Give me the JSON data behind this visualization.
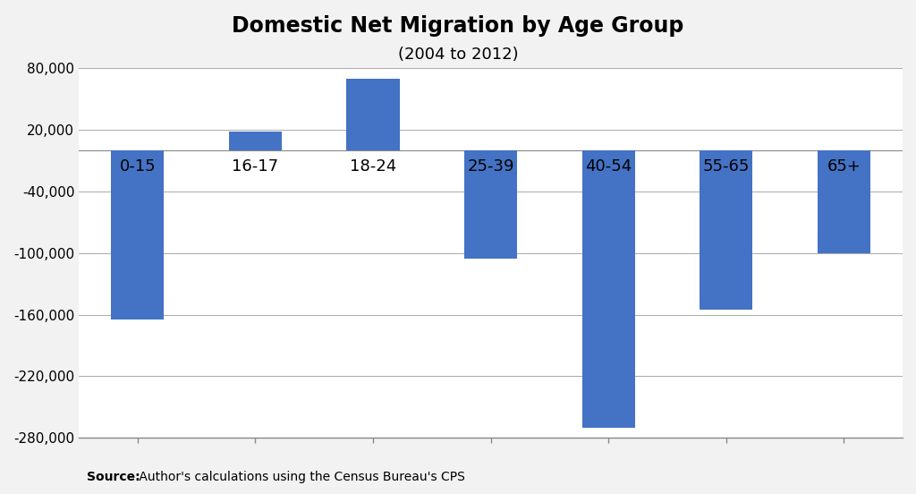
{
  "title_line1": "Domestic Net Migration by Age Group",
  "title_line2": "(2004 to 2012)",
  "categories": [
    "0-15",
    "16-17",
    "18-24",
    "25-39",
    "40-54",
    "55-65",
    "65+"
  ],
  "values": [
    -165000,
    18000,
    70000,
    -105000,
    -270000,
    -155000,
    -100000
  ],
  "bar_color": "#4472C4",
  "ylim": [
    -280000,
    80000
  ],
  "yticks": [
    -280000,
    -220000,
    -160000,
    -100000,
    -40000,
    20000,
    80000
  ],
  "source_text_bold": "Source:",
  "source_text_normal": " Author's calculations using the Census Bureau's CPS",
  "background_color": "#f2f2f2",
  "plot_bg_color": "#ffffff",
  "label_fontsize": 13,
  "title_fontsize1": 17,
  "title_fontsize2": 13
}
